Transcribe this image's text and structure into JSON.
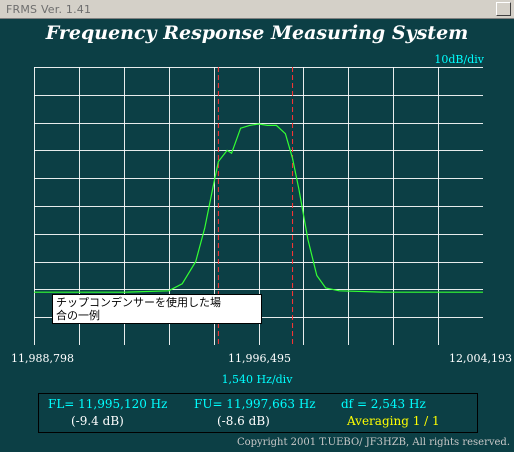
{
  "window": {
    "title": "FRMS  Ver. 1.41"
  },
  "heading": "Frequency Response Measuring System",
  "vertical_scale": "10dB/div",
  "horizontal_scale": "1,540  Hz/div",
  "note": {
    "line1": "チップコンデンサーを使用した場",
    "line2": "合の一例"
  },
  "x_ticks": {
    "left": "11,988,798",
    "center": "11,996,495",
    "right": "12,004,193"
  },
  "results": {
    "fl": "FL= 11,995,120  Hz",
    "fl_db": "(-9.4 dB)",
    "fu": "FU= 11,997,663  Hz",
    "fu_db": "(-8.6 dB)",
    "df": "df = 2,543  Hz",
    "averaging": "Averaging   1 / 1"
  },
  "copyright": "Copyright 2001 T.UEBO/ JF3HZB, All rights reserved.",
  "colors": {
    "background": "#0c3f45",
    "grid": "#ffffff",
    "trace": "#33ff33",
    "marker": "#ff3333",
    "accent": "#00ffff"
  },
  "chart_data": {
    "type": "line",
    "x_unit": "Hz",
    "y_unit": "dB",
    "xlim": [
      11988798,
      12004193
    ],
    "ylim": [
      -100,
      0
    ],
    "grid": true,
    "grid_divisions": {
      "x": 10,
      "y": 10
    },
    "markers": [
      11995120,
      11997663
    ],
    "series": [
      {
        "x": [
          11988798,
          11990338,
          11991878,
          11993418,
          11993880,
          11994342,
          11994650,
          11994958,
          11995120,
          11995420,
          11995574,
          11995882,
          11996190,
          11996495,
          11996800,
          11997110,
          11997418,
          11997663,
          11997880,
          11998190,
          11998496,
          11998800,
          11999264,
          12000800,
          12002340,
          12004193
        ],
        "values": [
          -81,
          -81,
          -81,
          -80.5,
          -78,
          -70,
          -58,
          -42,
          -34,
          -30,
          -31,
          -22,
          -21,
          -20.5,
          -21,
          -21,
          -24,
          -33,
          -44,
          -62,
          -75,
          -79.5,
          -80.5,
          -81,
          -81,
          -81
        ]
      }
    ]
  }
}
